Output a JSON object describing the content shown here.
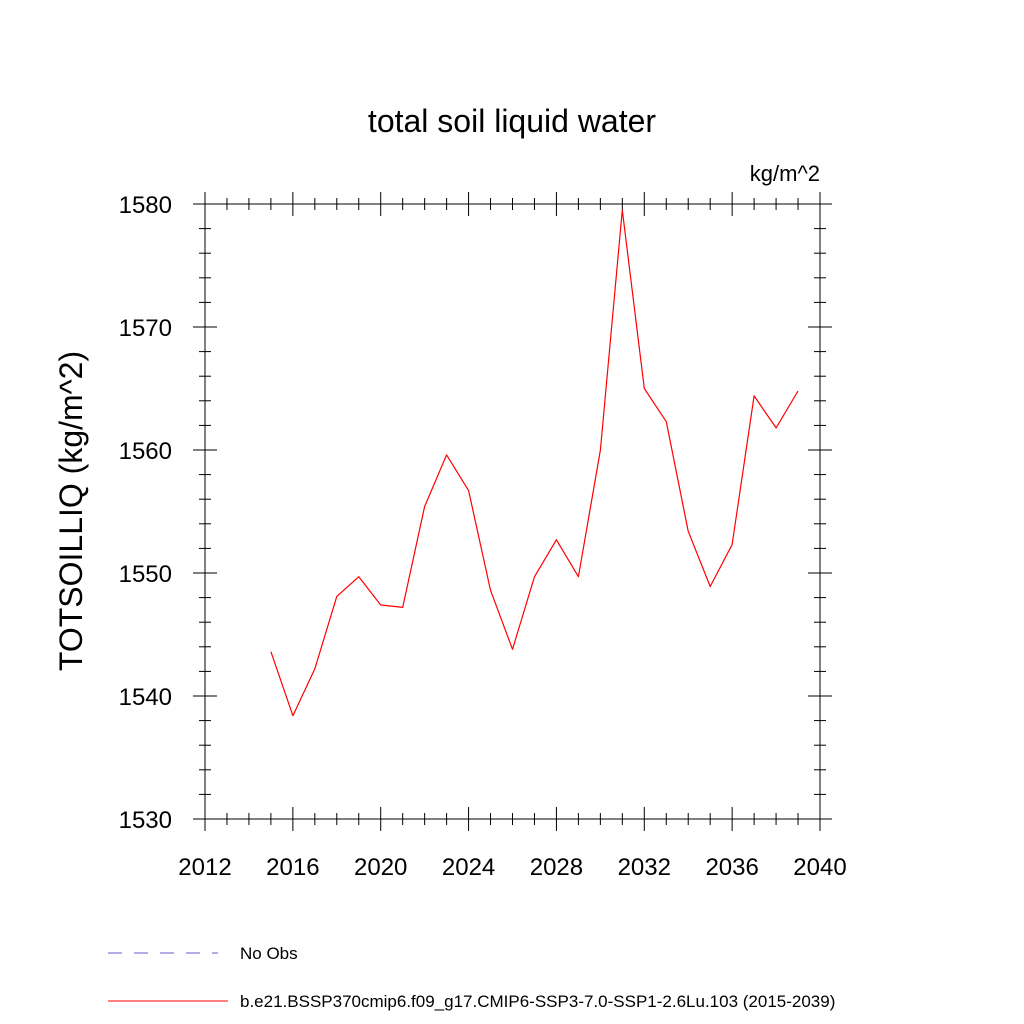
{
  "chart_data": {
    "type": "line",
    "title": "total soil liquid water",
    "units_label": "kg/m^2",
    "ylabel": "TOTSOILLIQ  (kg/m^2)",
    "xlabel": "",
    "xlim": [
      2012,
      2040
    ],
    "ylim": [
      1530,
      1580
    ],
    "x_ticks": [
      2012,
      2016,
      2020,
      2024,
      2028,
      2032,
      2036,
      2040
    ],
    "y_ticks": [
      1530,
      1540,
      1550,
      1560,
      1570,
      1580
    ],
    "grid": false,
    "legend_position": "bottom-left",
    "legend": [
      {
        "label": "No Obs",
        "color": "#6a5acd",
        "style": "dashed"
      },
      {
        "label": "b.e21.BSSP370cmip6.f09_g17.CMIP6-SSP3-7.0-SSP1-2.6Lu.103 (2015-2039)",
        "color": "#ff0000",
        "style": "solid"
      }
    ],
    "series": [
      {
        "color": "#ff0000",
        "x": [
          2015,
          2016,
          2017,
          2018,
          2019,
          2020,
          2021,
          2022,
          2023,
          2024,
          2025,
          2026,
          2027,
          2028,
          2029,
          2030,
          2031,
          2032,
          2033,
          2034,
          2035,
          2036,
          2037,
          2038,
          2039
        ],
        "y": [
          1543.6,
          1538.4,
          1542.2,
          1548.1,
          1549.7,
          1547.4,
          1547.2,
          1555.4,
          1559.6,
          1556.7,
          1548.6,
          1543.8,
          1549.7,
          1552.7,
          1549.7,
          1560.0,
          1579.5,
          1565.0,
          1562.3,
          1553.4,
          1548.9,
          1552.3,
          1564.4,
          1561.8,
          1564.8
        ]
      }
    ]
  }
}
